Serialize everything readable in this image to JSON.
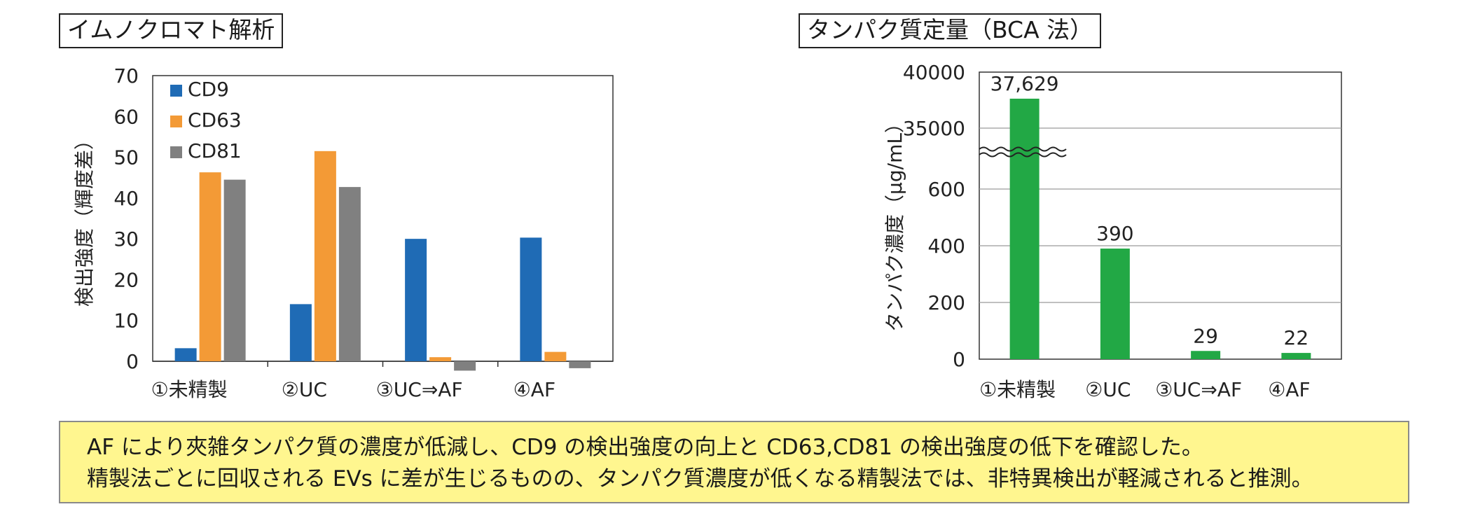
{
  "left_title": "イムノクロマト解析",
  "right_title": "タンパク質定量（BCA 法）",
  "summary": {
    "line1": "AF により夾雑タンパク質の濃度が低減し、CD9 の検出強度の向上と CD63,CD81 の検出強度の低下を確認した。",
    "line2": "精製法ごとに回収される EVs に差が生じるものの、タンパク質濃度が低くなる精製法では、非特異検出が軽減されると推測。"
  },
  "chart_data": [
    {
      "type": "bar",
      "title": "イムノクロマト解析",
      "ylabel": "検出強度（輝度差）",
      "ylim": [
        0,
        70
      ],
      "yticks": [
        0,
        10,
        20,
        30,
        40,
        50,
        60,
        70
      ],
      "categories": [
        "①未精製",
        "②UC",
        "③UC⇒AF",
        "④AF"
      ],
      "series": [
        {
          "name": "CD9",
          "color": "#1f6bb5",
          "values": [
            3.2,
            14,
            30,
            30.3
          ]
        },
        {
          "name": "CD63",
          "color": "#f39a36",
          "values": [
            46.3,
            51.5,
            1,
            2.3
          ]
        },
        {
          "name": "CD81",
          "color": "#808080",
          "values": [
            44.5,
            42.7,
            -2.3,
            -1.7
          ]
        }
      ],
      "legend_position": "top-left",
      "grid": false
    },
    {
      "type": "bar",
      "title": "タンパク質定量（BCA 法）",
      "ylabel": "タンパク濃度（μg/mL）",
      "axis_break": true,
      "yticks_lower": [
        0,
        200,
        400,
        600
      ],
      "yticks_upper": [
        35000,
        40000
      ],
      "categories": [
        "①未精製",
        "②UC",
        "③UC⇒AF",
        "④AF"
      ],
      "series": [
        {
          "color": "#22a845",
          "values": [
            37629,
            390,
            29,
            22
          ]
        }
      ],
      "data_labels": [
        "37,629",
        "390",
        "29",
        "22"
      ],
      "grid": true
    }
  ]
}
